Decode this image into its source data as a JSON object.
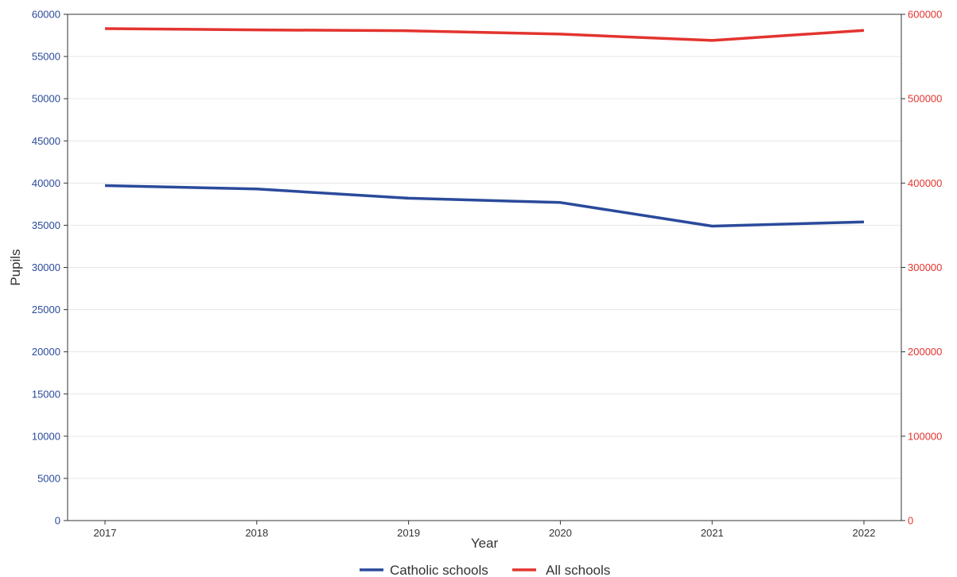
{
  "chart_data": {
    "type": "line",
    "xlabel": "Year",
    "ylabel": "Pupils",
    "x": [
      2017,
      2018,
      2019,
      2020,
      2021,
      2022
    ],
    "xticks": [
      "2017",
      "2018",
      "2019",
      "2020",
      "2021",
      "2022"
    ],
    "ylim_left": [
      0,
      60000
    ],
    "yticks_left": [
      "0",
      "5000",
      "10000",
      "15000",
      "20000",
      "25000",
      "30000",
      "35000",
      "40000",
      "45000",
      "50000",
      "55000",
      "60000"
    ],
    "ylim_right": [
      0,
      600000
    ],
    "yticks_right": [
      "0",
      "100000",
      "200000",
      "300000",
      "400000",
      "500000",
      "600000"
    ],
    "grid": "horizontal",
    "legend_position": "bottom",
    "series": [
      {
        "name": "Catholic schools",
        "axis": "left",
        "color": "#2b4a9b",
        "values": [
          39700,
          39300,
          38200,
          37700,
          34900,
          35400
        ]
      },
      {
        "name": "All schools",
        "axis": "right",
        "color": "#e3342f",
        "values": [
          583000,
          581500,
          580500,
          576500,
          569000,
          581000
        ]
      }
    ]
  }
}
